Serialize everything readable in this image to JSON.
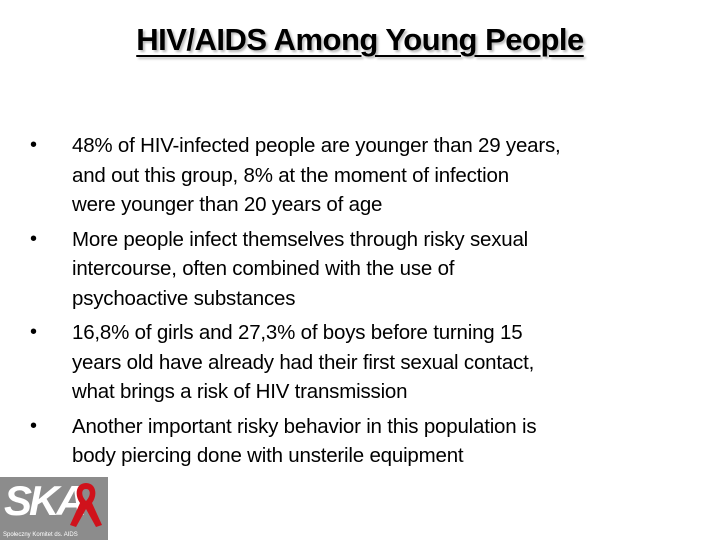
{
  "title": "HIV/AIDS Among Young People",
  "bullets": [
    [
      "48% of HIV-infected people are younger than 29 years,",
      "and out this group, 8% at the moment of infection",
      "were younger than 20 years of age"
    ],
    [
      "More people infect themselves through risky sexual",
      "intercourse, often combined with the use of",
      "psychoactive substances"
    ],
    [
      "16,8% of girls and 27,3% of boys before turning 15",
      "years old have already had their first sexual contact,",
      "what brings a risk of HIV transmission"
    ],
    [
      "Another important risky behavior in this population is",
      "body piercing done with unsterile equipment"
    ]
  ],
  "logo": {
    "text": "SKA",
    "caption": "Społeczny Komitet ds. AIDS"
  }
}
